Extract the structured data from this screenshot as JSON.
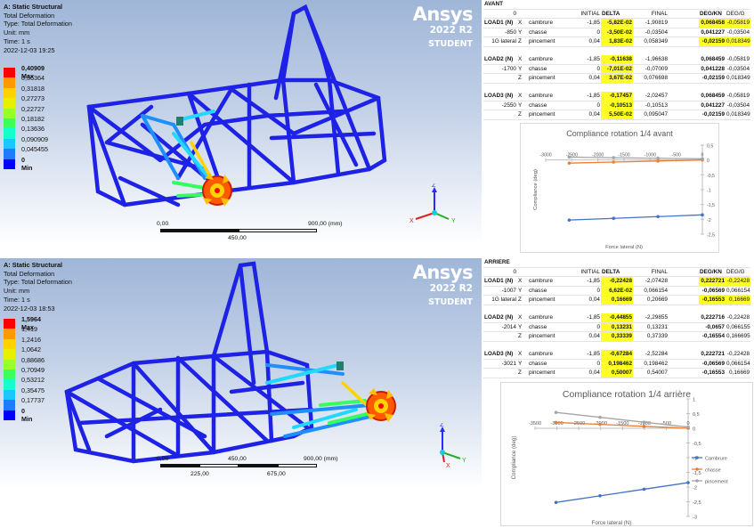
{
  "top": {
    "viewport": {
      "title": "A: Static Structural",
      "type_line1": "Total Deformation",
      "type_line2": "Type: Total Deformation",
      "unit": "Unit: mm",
      "time": "Time: 1 s",
      "date": "2022-12-03 19:25",
      "legend": [
        {
          "label": "0,40909 Max",
          "color": "#ff0000",
          "bold": true
        },
        {
          "label": "0,36364",
          "color": "#ff9900",
          "bold": false
        },
        {
          "label": "0,31818",
          "color": "#ffd200",
          "bold": false
        },
        {
          "label": "0,27273",
          "color": "#e8f000",
          "bold": false
        },
        {
          "label": "0,22727",
          "color": "#9aff28",
          "bold": false
        },
        {
          "label": "0,18182",
          "color": "#3cff5e",
          "bold": false
        },
        {
          "label": "0,13636",
          "color": "#14ffcc",
          "bold": false
        },
        {
          "label": "0,090909",
          "color": "#19c8ff",
          "bold": false
        },
        {
          "label": "0,045455",
          "color": "#1f7bff",
          "bold": false
        },
        {
          "label": "0 Min",
          "color": "#0000ff",
          "bold": true
        }
      ],
      "logo": "Ansys",
      "version": "2022 R2",
      "edition": "STUDENT",
      "scale_labels": [
        "0,00",
        "900,00 (mm)",
        "450,00"
      ]
    },
    "table": {
      "title": "AVANT",
      "header": [
        "0",
        "",
        "",
        "INITIAL",
        "DELTA",
        "FINAL",
        "",
        "DEG/KN",
        "DEG/G"
      ],
      "rows": [
        {
          "c": [
            "LOAD1 (N)",
            "X",
            "cambrure",
            "-1,85",
            "-5,82E-02",
            "-1,90819",
            "",
            "0,068458",
            "-0,05819"
          ],
          "hl": [
            4,
            7,
            8
          ]
        },
        {
          "c": [
            "-850",
            "Y",
            "chasse",
            "0",
            "-3,50E-02",
            "-0,03504",
            "",
            "0,041227",
            "-0,03504"
          ],
          "hl": [
            4
          ]
        },
        {
          "c": [
            "1G lateral",
            "Z",
            "pincement",
            "0,04",
            "1,83E-02",
            "0,058349",
            "",
            "-0,02159",
            "0,018349"
          ],
          "hl": [
            4,
            7,
            8
          ]
        },
        {
          "c": [
            "",
            "",
            "",
            "",
            "",
            "",
            "",
            "",
            ""
          ],
          "hl": []
        },
        {
          "c": [
            "LOAD2 (N)",
            "X",
            "cambrure",
            "-1,85",
            "-0,11638",
            "-1,96638",
            "",
            "0,068459",
            "-0,05819"
          ],
          "hl": [
            4
          ]
        },
        {
          "c": [
            "-1700",
            "Y",
            "chasse",
            "0",
            "-7,01E-02",
            "-0,07009",
            "",
            "0,041228",
            "-0,03504"
          ],
          "hl": [
            4
          ]
        },
        {
          "c": [
            "",
            "Z",
            "pincement",
            "0,04",
            "3,67E-02",
            "0,076698",
            "",
            "-0,02159",
            "0,018349"
          ],
          "hl": [
            4
          ]
        },
        {
          "c": [
            "",
            "",
            "",
            "",
            "",
            "",
            "",
            "",
            ""
          ],
          "hl": []
        },
        {
          "c": [
            "LOAD3 (N)",
            "X",
            "cambrure",
            "-1,85",
            "-0,17457",
            "-2,02457",
            "",
            "0,068459",
            "-0,05819"
          ],
          "hl": [
            4
          ]
        },
        {
          "c": [
            "-2550",
            "Y",
            "chasse",
            "0",
            "-0,10513",
            "-0,10513",
            "",
            "0,041227",
            "-0,03504"
          ],
          "hl": [
            4
          ]
        },
        {
          "c": [
            "",
            "Z",
            "pincement",
            "0,04",
            "5,50E-02",
            "0,095047",
            "",
            "-0,02159",
            "0,018349"
          ],
          "hl": [
            4
          ]
        }
      ]
    },
    "chart_data": {
      "type": "line",
      "title": "Compliance rotation 1/4 avant",
      "xlabel": "Force lateral (N)",
      "ylabel": "Compliance (deg)",
      "x": [
        -2550,
        -1700,
        -850,
        0
      ],
      "xlim": [
        -3000,
        0
      ],
      "ylim": [
        -2.5,
        0.5
      ],
      "xticks": [
        -3000,
        -2500,
        -2000,
        -1500,
        -1000,
        -500,
        0
      ],
      "yticks": [
        0.5,
        0,
        -0.5,
        -1,
        -1.5,
        -2,
        -2.5
      ],
      "xtick_labels": [
        "-3000",
        "-2500",
        "-2000",
        "-1500",
        "-1000",
        "-500",
        "0"
      ],
      "ytick_labels": [
        "0,5",
        "0",
        "-0,5",
        "-1",
        "-1,5",
        "-2",
        "-2,5"
      ],
      "series": [
        {
          "name": "Cambrure",
          "color": "#4472c4",
          "values": [
            -2.02457,
            -1.96638,
            -1.90819,
            -1.85
          ]
        },
        {
          "name": "chasse",
          "color": "#ed7d31",
          "values": [
            -0.10513,
            -0.07009,
            -0.03504,
            0
          ]
        },
        {
          "name": "pincement",
          "color": "#a5a5a5",
          "values": [
            0.095047,
            0.076698,
            0.058349,
            0.04
          ]
        }
      ],
      "legend": false
    }
  },
  "bottom": {
    "viewport": {
      "title": "A: Static Structural",
      "type_line1": "Total Deformation",
      "type_line2": "Type: Total Deformation",
      "unit": "Unit: mm",
      "time": "Time: 1 s",
      "date": "2022-12-03 18:53",
      "legend": [
        {
          "label": "1,5964 Max",
          "color": "#ff0000",
          "bold": true
        },
        {
          "label": "1,419",
          "color": "#ff9900",
          "bold": false
        },
        {
          "label": "1,2416",
          "color": "#ffd200",
          "bold": false
        },
        {
          "label": "1,0642",
          "color": "#e8f000",
          "bold": false
        },
        {
          "label": "0,88686",
          "color": "#9aff28",
          "bold": false
        },
        {
          "label": "0,70949",
          "color": "#3cff5e",
          "bold": false
        },
        {
          "label": "0,53212",
          "color": "#14ffcc",
          "bold": false
        },
        {
          "label": "0,35475",
          "color": "#19c8ff",
          "bold": false
        },
        {
          "label": "0,17737",
          "color": "#1f7bff",
          "bold": false
        },
        {
          "label": "0 Min",
          "color": "#0000ff",
          "bold": true
        }
      ],
      "logo": "Ansys",
      "version": "2022 R2",
      "edition": "STUDENT",
      "scale_labels": [
        "0,00",
        "450,00",
        "900,00 (mm)",
        "225,00",
        "675,00"
      ]
    },
    "table": {
      "title": "ARRIERE",
      "header": [
        "0",
        "",
        "",
        "INITIAL",
        "DELTA",
        "FINAL",
        "",
        "DEG/KN",
        "DEG/G"
      ],
      "rows": [
        {
          "c": [
            "LOAD1 (N)",
            "X",
            "cambrure",
            "-1,85",
            "-0,22428",
            "-2,07428",
            "",
            "0,222721",
            "-0,22428"
          ],
          "hl": [
            4,
            7,
            8
          ]
        },
        {
          "c": [
            "-1007",
            "Y",
            "chasse",
            "0",
            "6,62E-02",
            "0,066154",
            "",
            "-0,06569",
            "0,066154"
          ],
          "hl": [
            4
          ]
        },
        {
          "c": [
            "1G lateral",
            "Z",
            "pincement",
            "0,04",
            "0,16669",
            "0,20669",
            "",
            "-0,16553",
            "0,16669"
          ],
          "hl": [
            4,
            7,
            8
          ]
        },
        {
          "c": [
            "",
            "",
            "",
            "",
            "",
            "",
            "",
            "",
            ""
          ],
          "hl": []
        },
        {
          "c": [
            "LOAD2 (N)",
            "X",
            "cambrure",
            "-1,85",
            "-0,44855",
            "-2,29855",
            "",
            "0,222716",
            "-0,22428"
          ],
          "hl": [
            4
          ]
        },
        {
          "c": [
            "-2014",
            "Y",
            "chasse",
            "0",
            "0,13231",
            "0,13231",
            "",
            "-0,0657",
            "0,066155"
          ],
          "hl": [
            4
          ]
        },
        {
          "c": [
            "",
            "Z",
            "pincement",
            "0,04",
            "0,33339",
            "0,37339",
            "",
            "-0,16554",
            "0,166695"
          ],
          "hl": [
            4
          ]
        },
        {
          "c": [
            "",
            "",
            "",
            "",
            "",
            "",
            "",
            "",
            ""
          ],
          "hl": []
        },
        {
          "c": [
            "LOAD3 (N)",
            "X",
            "cambrure",
            "-1,85",
            "-0,67284",
            "-2,52284",
            "",
            "0,222721",
            "-0,22428"
          ],
          "hl": [
            4
          ]
        },
        {
          "c": [
            "-3021",
            "Y",
            "chasse",
            "0",
            "0,198462",
            "0,198462",
            "",
            "-0,06569",
            "0,066154"
          ],
          "hl": [
            4
          ]
        },
        {
          "c": [
            "",
            "Z",
            "pincement",
            "0,04",
            "0,50007",
            "0,54007",
            "",
            "-0,16553",
            "0,16669"
          ],
          "hl": [
            4
          ]
        }
      ]
    },
    "chart_data": {
      "type": "line",
      "title": "Compliance rotation 1/4 arrière",
      "xlabel": "Force lateral (N)",
      "ylabel": "Compliance (deg)",
      "x": [
        -3021,
        -2014,
        -1007,
        0
      ],
      "xlim": [
        -3500,
        0
      ],
      "ylim": [
        -3,
        1
      ],
      "xticks": [
        -3500,
        -3000,
        -2500,
        -2000,
        -1500,
        -1000,
        -500,
        0
      ],
      "yticks": [
        1,
        0.5,
        0,
        -0.5,
        -1,
        -1.5,
        -2,
        -2.5,
        -3
      ],
      "xtick_labels": [
        "-3500",
        "-3000",
        "-2500",
        "-2000",
        "-1500",
        "-1000",
        "-500",
        "0"
      ],
      "ytick_labels": [
        "1",
        "0,5",
        "0",
        "-0,5",
        "-1",
        "-1,5",
        "-2",
        "-2,5",
        "-3"
      ],
      "series": [
        {
          "name": "Cambrure",
          "color": "#4472c4",
          "values": [
            -2.52284,
            -2.29855,
            -2.07428,
            -1.85
          ]
        },
        {
          "name": "chasse",
          "color": "#ed7d31",
          "values": [
            0.198462,
            0.13231,
            0.066154,
            0
          ]
        },
        {
          "name": "pincement",
          "color": "#a5a5a5",
          "values": [
            0.54007,
            0.37339,
            0.20669,
            0.04
          ]
        }
      ],
      "legend": true,
      "legend_position": "right"
    }
  }
}
